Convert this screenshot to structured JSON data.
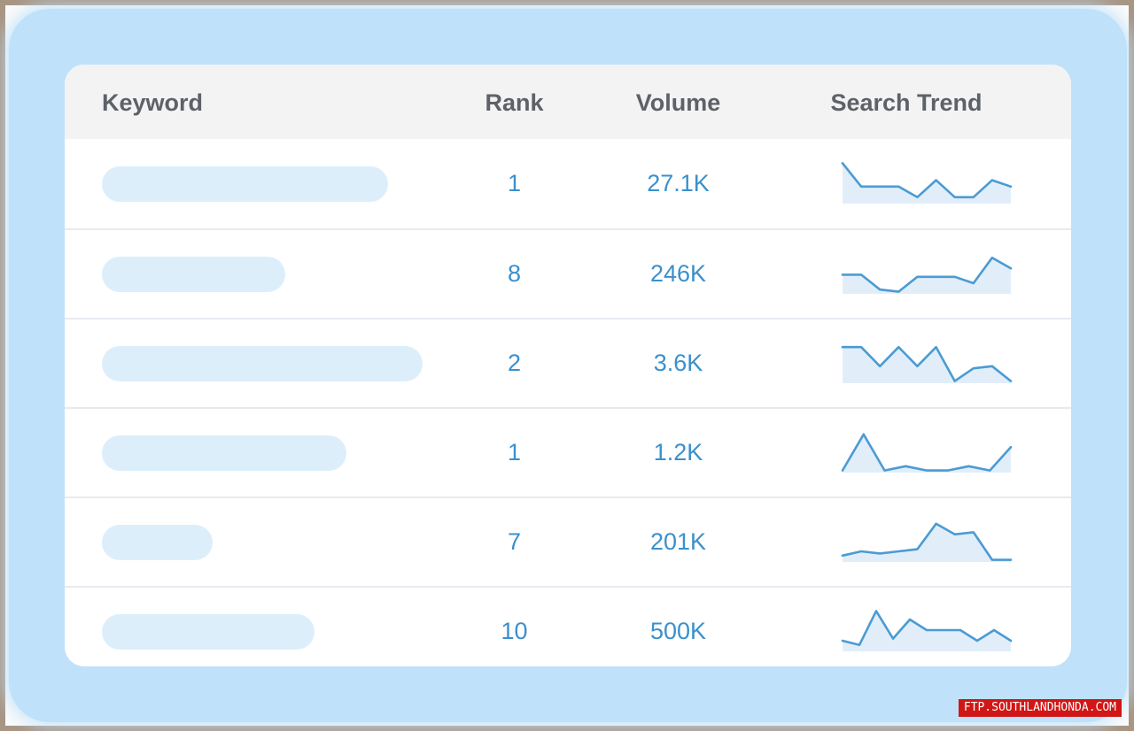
{
  "table": {
    "headers": {
      "keyword": "Keyword",
      "rank": "Rank",
      "volume": "Volume",
      "trend": "Search Trend"
    },
    "rows": [
      {
        "rank": "1",
        "volume": "27.1K",
        "trend": [
          95,
          40,
          40,
          40,
          15,
          55,
          15,
          15,
          55,
          40
        ]
      },
      {
        "rank": "8",
        "volume": "246K",
        "trend": [
          45,
          45,
          10,
          5,
          40,
          40,
          40,
          25,
          85,
          60
        ]
      },
      {
        "rank": "2",
        "volume": "3.6K",
        "trend": [
          85,
          85,
          40,
          85,
          40,
          85,
          5,
          35,
          40,
          5
        ]
      },
      {
        "rank": "1",
        "volume": "1.2K",
        "trend": [
          5,
          90,
          5,
          15,
          5,
          5,
          15,
          5,
          60
        ]
      },
      {
        "rank": "7",
        "volume": "201K",
        "trend": [
          15,
          25,
          20,
          25,
          30,
          90,
          65,
          70,
          5,
          5
        ]
      },
      {
        "rank": "10",
        "volume": "500K",
        "trend": [
          25,
          15,
          95,
          30,
          75,
          50,
          50,
          50,
          25,
          50,
          25
        ]
      }
    ]
  },
  "watermark": "FTP.SOUTHLANDHONDA.COM",
  "colors": {
    "accent": "#3a90cc",
    "panel": "#bfe1fa",
    "placeholder": "#ddeefb"
  }
}
